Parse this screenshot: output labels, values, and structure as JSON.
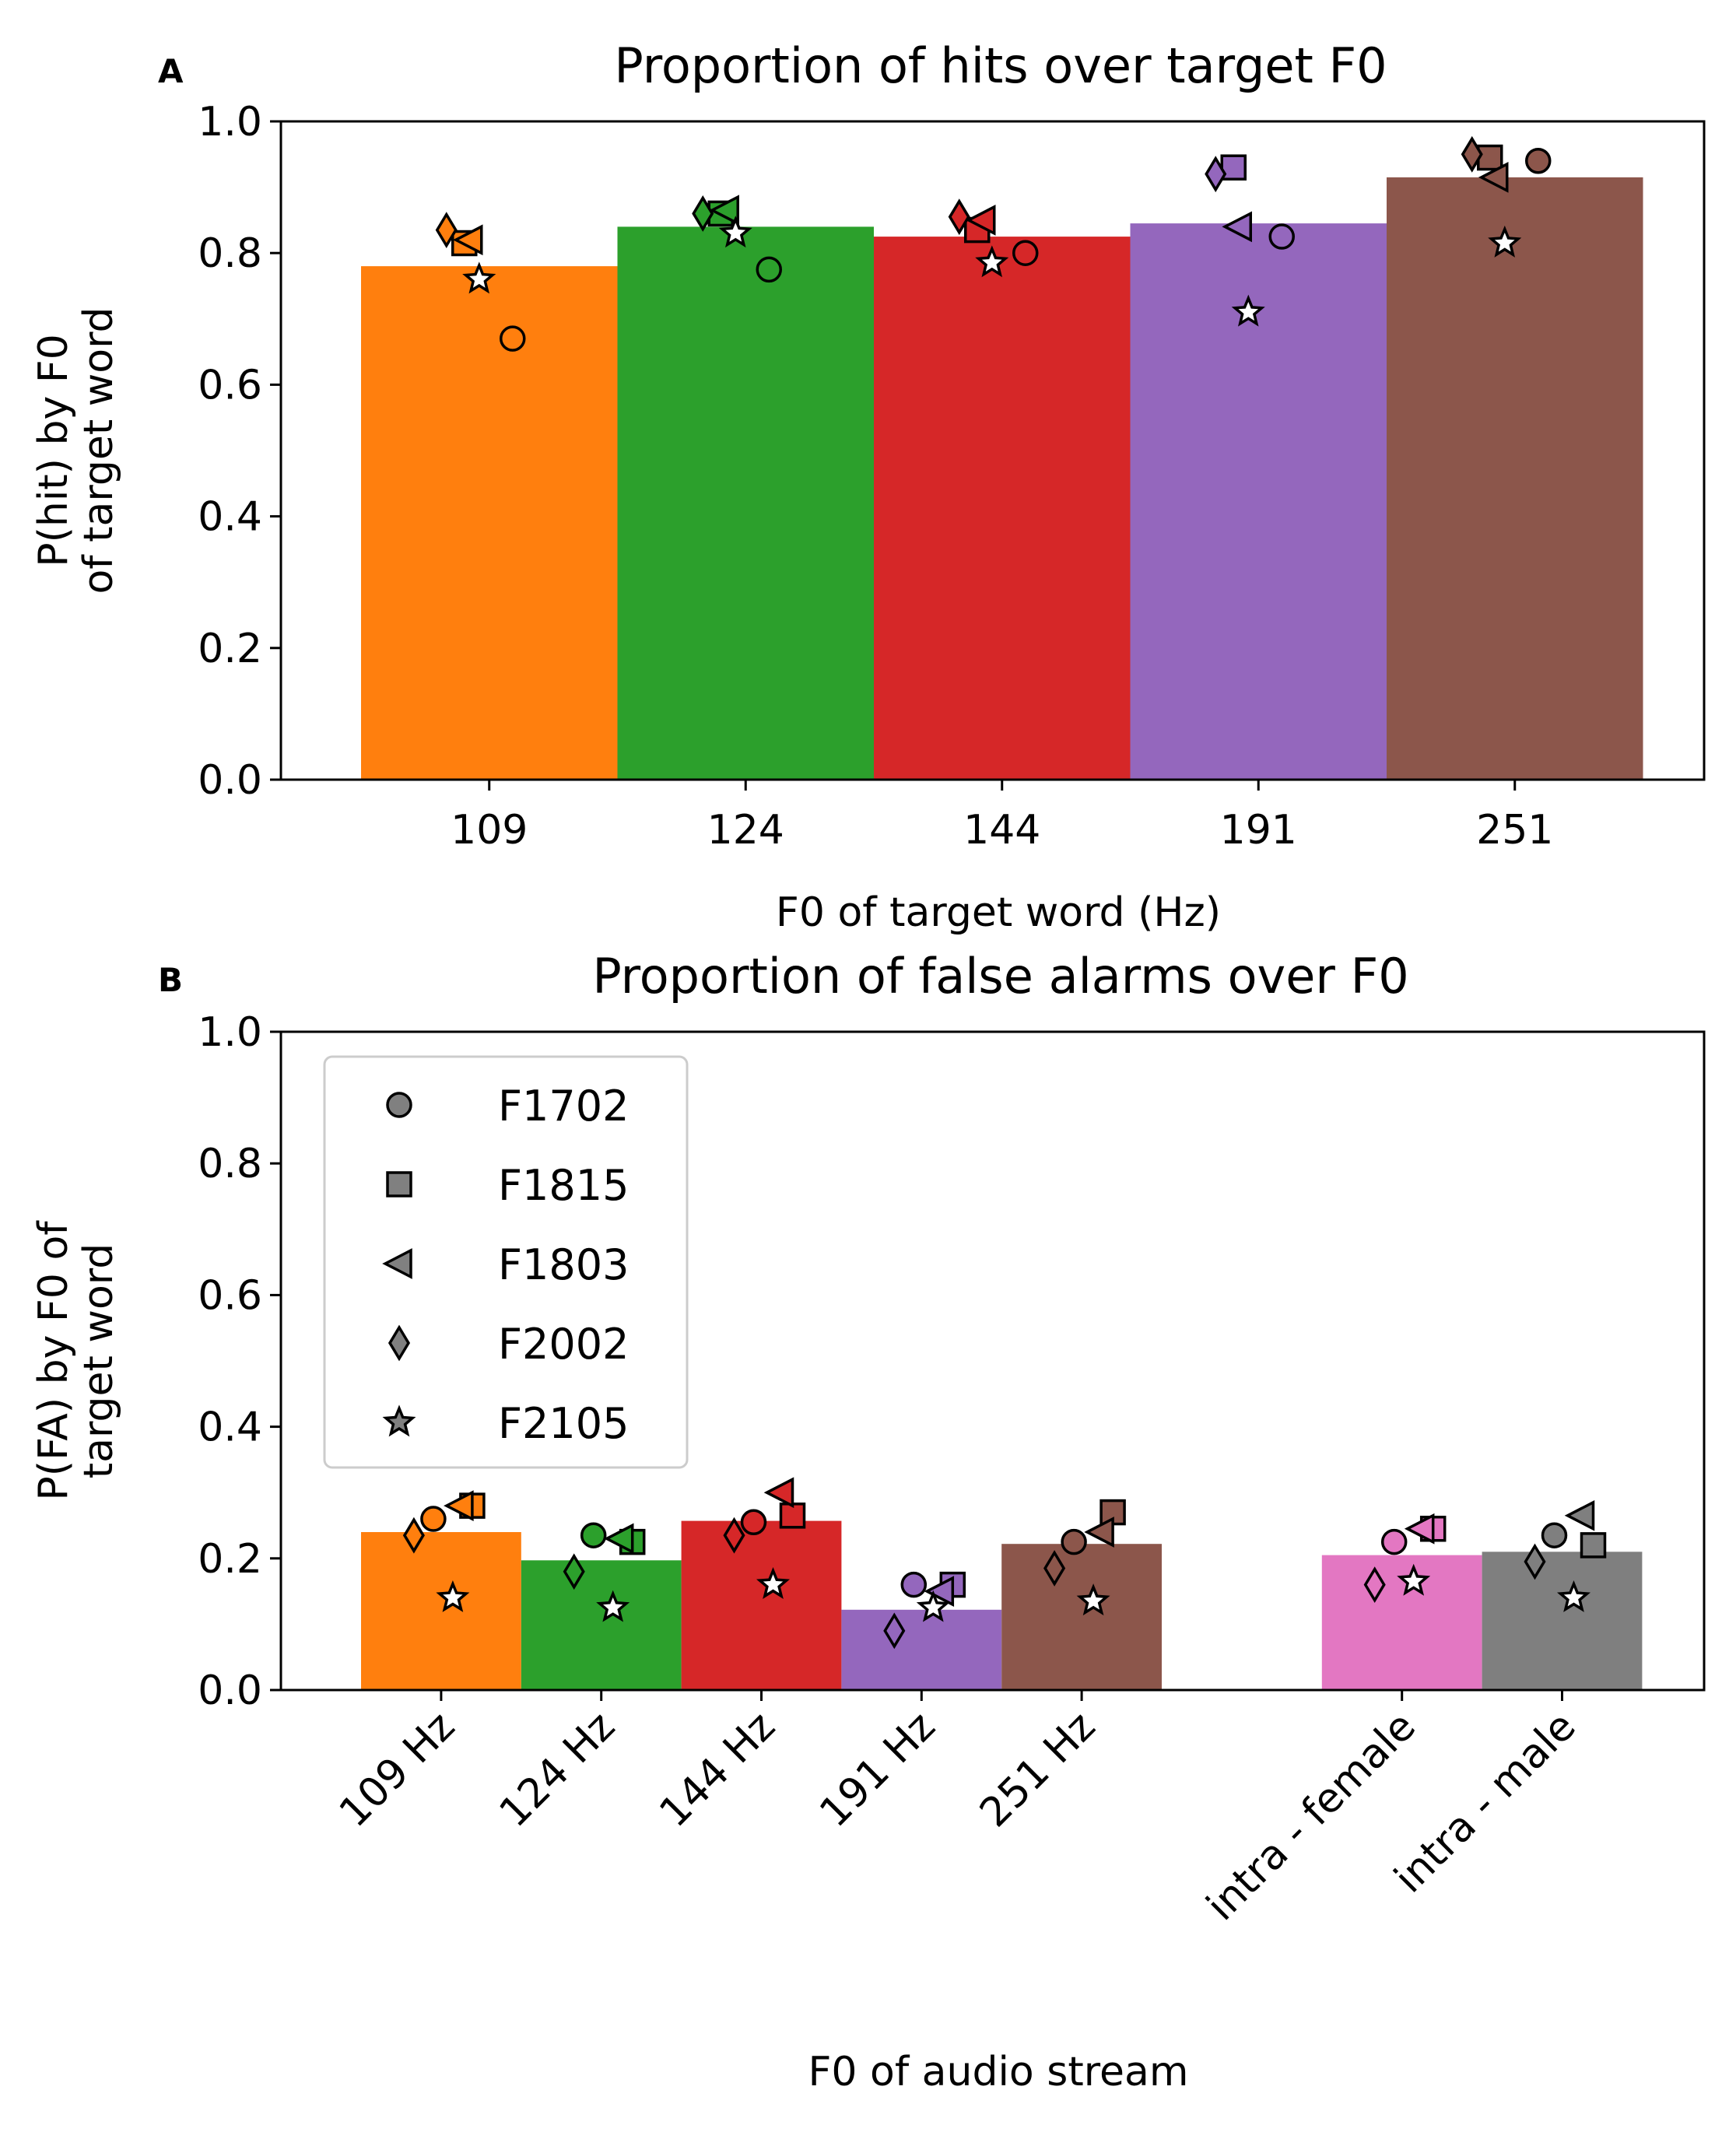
{
  "colors": {
    "orange": "#ff7f0e",
    "green": "#2ca02c",
    "red": "#d62728",
    "purple": "#9467bd",
    "brown": "#8c564b",
    "pink": "#e377c2",
    "gray": "#7f7f7f",
    "legend_marker": "#808080"
  },
  "chart_data": [
    {
      "type": "bar",
      "panel": "A",
      "title": "Proportion of hits over target F0",
      "xlabel": "F0 of target word (Hz)",
      "ylabel_lines": [
        "P(hit) by F0",
        "of target word"
      ],
      "ylim": [
        0,
        1
      ],
      "yticks": [
        "0.0",
        "0.2",
        "0.4",
        "0.6",
        "0.8",
        "1.0"
      ],
      "categories": [
        "109",
        "124",
        "144",
        "191",
        "251"
      ],
      "values": [
        0.78,
        0.84,
        0.825,
        0.845,
        0.915
      ],
      "bar_colors": [
        "orange",
        "green",
        "red",
        "purple",
        "brown"
      ],
      "series": [
        {
          "name": "F1702",
          "marker": "circle",
          "values": [
            0.67,
            0.775,
            0.8,
            0.825,
            0.94
          ]
        },
        {
          "name": "F1815",
          "marker": "square",
          "values": [
            0.815,
            0.86,
            0.835,
            0.93,
            0.945
          ]
        },
        {
          "name": "F1803",
          "marker": "triangle-left",
          "values": [
            0.82,
            0.865,
            0.85,
            0.84,
            0.915
          ]
        },
        {
          "name": "F2002",
          "marker": "diamond",
          "values": [
            0.835,
            0.86,
            0.855,
            0.92,
            0.95
          ]
        },
        {
          "name": "F2105",
          "marker": "star",
          "values": [
            0.76,
            0.83,
            0.785,
            0.71,
            0.815
          ]
        }
      ]
    },
    {
      "type": "bar",
      "panel": "B",
      "title": "Proportion of false alarms over F0",
      "xlabel": "F0 of audio stream",
      "ylabel_lines": [
        "P(FA) by F0 of",
        "target word"
      ],
      "ylim": [
        0,
        1
      ],
      "yticks": [
        "0.0",
        "0.2",
        "0.4",
        "0.6",
        "0.8",
        "1.0"
      ],
      "categories": [
        "109 Hz",
        "124 Hz",
        "144 Hz",
        "191 Hz",
        "251 Hz",
        "intra - female",
        "intra - male"
      ],
      "values": [
        0.24,
        0.197,
        0.257,
        0.122,
        0.222,
        0.205,
        0.21
      ],
      "bar_colors": [
        "orange",
        "green",
        "red",
        "purple",
        "brown",
        "pink",
        "gray"
      ],
      "legend": {
        "placement": "upper-left",
        "entries": [
          {
            "name": "F1702",
            "marker": "circle"
          },
          {
            "name": "F1815",
            "marker": "square"
          },
          {
            "name": "F1803",
            "marker": "triangle-left"
          },
          {
            "name": "F2002",
            "marker": "diamond"
          },
          {
            "name": "F2105",
            "marker": "star"
          }
        ]
      },
      "series": [
        {
          "name": "F1702",
          "marker": "circle",
          "values": [
            0.26,
            0.235,
            0.255,
            0.16,
            0.225,
            0.225,
            0.235
          ]
        },
        {
          "name": "F1815",
          "marker": "square",
          "values": [
            0.28,
            0.225,
            0.265,
            0.16,
            0.27,
            0.245,
            0.22
          ]
        },
        {
          "name": "F1803",
          "marker": "triangle-left",
          "values": [
            0.28,
            0.23,
            0.3,
            0.15,
            0.24,
            0.245,
            0.265
          ]
        },
        {
          "name": "F2002",
          "marker": "diamond",
          "values": [
            0.235,
            0.18,
            0.235,
            0.09,
            0.185,
            0.16,
            0.195
          ]
        },
        {
          "name": "F2105",
          "marker": "star",
          "values": [
            0.14,
            0.125,
            0.16,
            0.125,
            0.135,
            0.165,
            0.14
          ]
        }
      ]
    }
  ]
}
